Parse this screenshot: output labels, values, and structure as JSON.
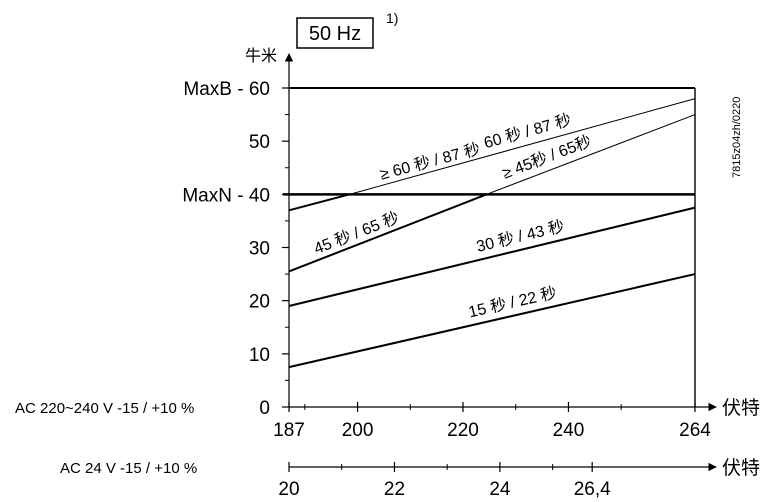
{
  "chart_data": {
    "type": "line",
    "frequency_box": "50 Hz",
    "footnote_mark": "1)",
    "ylabel": "牛米",
    "xlabel": "伏特",
    "xlabel2": "伏特",
    "figure_code": "7815z04zh/0220",
    "ylim": [
      0,
      60
    ],
    "y_ticks": [
      {
        "value": 60,
        "label": "MaxB - 60"
      },
      {
        "value": 50,
        "label": "50"
      },
      {
        "value": 40,
        "label": "MaxN - 40"
      },
      {
        "value": 30,
        "label": "30"
      },
      {
        "value": 20,
        "label": "20"
      },
      {
        "value": 10,
        "label": "10"
      },
      {
        "value": 0,
        "label": "0"
      }
    ],
    "xlim": [
      187,
      264
    ],
    "x_ticks": [
      187,
      200,
      220,
      240,
      264
    ],
    "x_ticks_label": [
      "187",
      "200",
      "220",
      "240",
      "264"
    ],
    "x_minor_ticks": [
      190,
      210,
      230,
      250
    ],
    "axis1_label": "AC 220~240 V -15 / +10 %",
    "axis2_label": "AC 24 V -15 / +10 %",
    "axis2_ticks": [
      "20",
      "22",
      "24",
      "26,4"
    ],
    "axis2_tick_at_x": [
      187,
      207,
      227,
      244.5
    ],
    "axis2_minor_at_x": [
      197,
      217,
      237
    ],
    "series": [
      {
        "name": "15 秒 / 22 秒",
        "x": [
          187,
          264
        ],
        "y": [
          7.5,
          25
        ]
      },
      {
        "name": "30 秒 / 43 秒",
        "x": [
          187,
          264
        ],
        "y": [
          19,
          37.5
        ]
      },
      {
        "name": "45 秒 / 65 秒",
        "x": [
          187,
          224.5
        ],
        "y": [
          25.5,
          40
        ]
      },
      {
        "name": "≥ 60 秒 / 87 秒",
        "x": [
          187,
          198.5
        ],
        "y": [
          37,
          40
        ]
      },
      {
        "name": "60 秒 / 87 秒",
        "x": [
          198.5,
          264
        ],
        "y": [
          40,
          58
        ]
      },
      {
        "name": "≥ 45秒 / 65秒",
        "x": [
          224.5,
          264
        ],
        "y": [
          40,
          55
        ]
      }
    ],
    "reference_lines": [
      {
        "label": "MaxB",
        "y": 60
      },
      {
        "label": "MaxN",
        "y": 40
      }
    ]
  }
}
